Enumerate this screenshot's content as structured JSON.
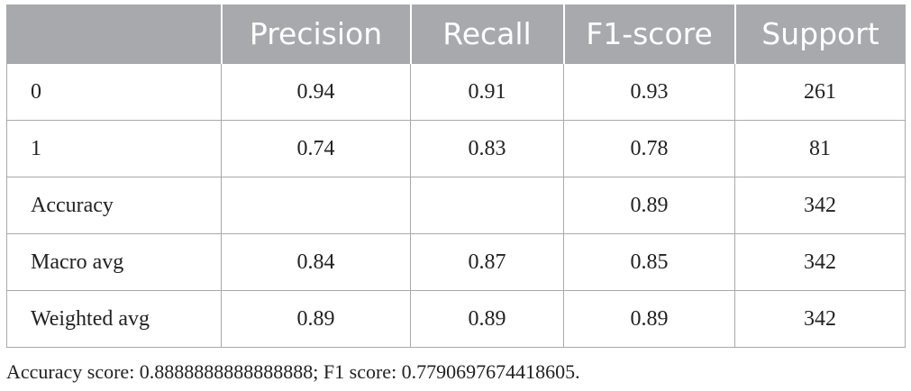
{
  "table": {
    "header": [
      "Precision",
      "Recall",
      "F1-score",
      "Support"
    ],
    "rows": [
      [
        "0",
        "0.94",
        "0.91",
        "0.93",
        "261"
      ],
      [
        "1",
        "0.74",
        "0.83",
        "0.78",
        "81"
      ],
      [
        "Accuracy",
        null,
        null,
        "0.89",
        "342"
      ],
      [
        "Macro avg",
        "0.84",
        "0.87",
        "0.85",
        "342"
      ],
      [
        "Weighted avg",
        "0.89",
        "0.89",
        "0.89",
        "342"
      ]
    ]
  },
  "footnote": "Accuracy score: 0.8888888888888888; F1 score: 0.7790697674418605."
}
